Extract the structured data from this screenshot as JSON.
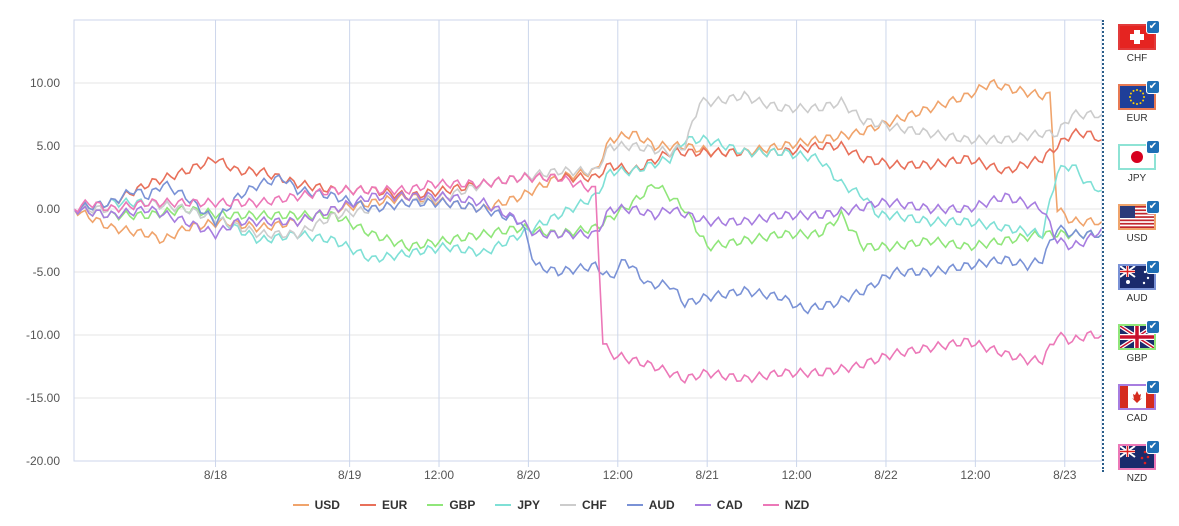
{
  "chart_data": {
    "type": "line",
    "title": "",
    "xlabel": "",
    "ylabel": "",
    "ylim": [
      -20,
      15
    ],
    "xlim": [
      0,
      138
    ],
    "yticks": [
      {
        "value": 10,
        "label": "10.00"
      },
      {
        "value": 5,
        "label": "5.00"
      },
      {
        "value": 0,
        "label": "0.00"
      },
      {
        "value": -5,
        "label": "-5.00"
      },
      {
        "value": -10,
        "label": "-10.00"
      },
      {
        "value": -15,
        "label": "-15.00"
      },
      {
        "value": -20,
        "label": "-20.00"
      }
    ],
    "xticks": [
      {
        "pos": 19,
        "label": "8/18"
      },
      {
        "pos": 37,
        "label": "8/19"
      },
      {
        "pos": 49,
        "label": "12:00"
      },
      {
        "pos": 61,
        "label": "8/20"
      },
      {
        "pos": 73,
        "label": "12:00"
      },
      {
        "pos": 85,
        "label": "8/21"
      },
      {
        "pos": 97,
        "label": "12:00"
      },
      {
        "pos": 109,
        "label": "8/22"
      },
      {
        "pos": 121,
        "label": "12:00"
      },
      {
        "pos": 133,
        "label": "8/23"
      }
    ],
    "grid": "horizontal",
    "legend_position": "bottom",
    "series": [
      {
        "name": "USD",
        "color": "#f0a46c",
        "points": [
          [
            0,
            0
          ],
          [
            5,
            -1.5
          ],
          [
            10,
            -2
          ],
          [
            12,
            -2.5
          ],
          [
            15,
            -1.5
          ],
          [
            20,
            -1
          ],
          [
            25,
            -1.5
          ],
          [
            30,
            -1
          ],
          [
            35,
            0
          ],
          [
            40,
            0.5
          ],
          [
            45,
            1
          ],
          [
            50,
            0.5
          ],
          [
            55,
            0
          ],
          [
            60,
            1
          ],
          [
            65,
            2.5
          ],
          [
            70,
            3
          ],
          [
            72,
            5.5
          ],
          [
            75,
            6
          ],
          [
            78,
            5
          ],
          [
            82,
            5
          ],
          [
            86,
            4.5
          ],
          [
            90,
            4.5
          ],
          [
            95,
            5
          ],
          [
            100,
            5.5
          ],
          [
            105,
            6
          ],
          [
            110,
            7
          ],
          [
            115,
            8
          ],
          [
            120,
            9
          ],
          [
            123,
            10
          ],
          [
            126,
            9.5
          ],
          [
            130,
            9
          ],
          [
            131,
            9
          ],
          [
            132,
            0
          ],
          [
            134,
            -1
          ],
          [
            136,
            -1
          ],
          [
            138,
            -1
          ]
        ]
      },
      {
        "name": "EUR",
        "color": "#e8705a",
        "points": [
          [
            0,
            0
          ],
          [
            5,
            0.5
          ],
          [
            10,
            2
          ],
          [
            15,
            3
          ],
          [
            19,
            4
          ],
          [
            22,
            3
          ],
          [
            25,
            3
          ],
          [
            30,
            2
          ],
          [
            35,
            1.5
          ],
          [
            40,
            1.5
          ],
          [
            45,
            1
          ],
          [
            50,
            1.5
          ],
          [
            55,
            2
          ],
          [
            60,
            2.5
          ],
          [
            65,
            2.5
          ],
          [
            70,
            2.5
          ],
          [
            72,
            3.5
          ],
          [
            75,
            3
          ],
          [
            80,
            4.5
          ],
          [
            85,
            4.5
          ],
          [
            90,
            4.5
          ],
          [
            95,
            4.5
          ],
          [
            100,
            5
          ],
          [
            103,
            5
          ],
          [
            106,
            4
          ],
          [
            110,
            3.5
          ],
          [
            115,
            3.5
          ],
          [
            120,
            4
          ],
          [
            125,
            3
          ],
          [
            130,
            4
          ],
          [
            132,
            5
          ],
          [
            134,
            6
          ],
          [
            136,
            6
          ],
          [
            138,
            5.5
          ]
        ]
      },
      {
        "name": "GBP",
        "color": "#90e67a",
        "points": [
          [
            0,
            0
          ],
          [
            5,
            -0.5
          ],
          [
            10,
            -0.5
          ],
          [
            15,
            0
          ],
          [
            20,
            -0.5
          ],
          [
            25,
            -0.5
          ],
          [
            30,
            -0.5
          ],
          [
            35,
            -0.5
          ],
          [
            40,
            -2
          ],
          [
            45,
            -3
          ],
          [
            50,
            -2.5
          ],
          [
            55,
            -2
          ],
          [
            60,
            -1.5
          ],
          [
            65,
            -2
          ],
          [
            70,
            -1.5
          ],
          [
            75,
            0.5
          ],
          [
            78,
            2
          ],
          [
            82,
            0
          ],
          [
            85,
            -3
          ],
          [
            90,
            -2.5
          ],
          [
            95,
            -2
          ],
          [
            100,
            -2
          ],
          [
            103,
            -0.5
          ],
          [
            106,
            -3
          ],
          [
            110,
            -3
          ],
          [
            115,
            -2.5
          ],
          [
            120,
            -3
          ],
          [
            125,
            -2.5
          ],
          [
            130,
            -2
          ],
          [
            134,
            -2
          ],
          [
            138,
            -2
          ]
        ]
      },
      {
        "name": "JPY",
        "color": "#7fe0d6",
        "points": [
          [
            0,
            0
          ],
          [
            5,
            0.5
          ],
          [
            10,
            0.5
          ],
          [
            15,
            0
          ],
          [
            20,
            -1
          ],
          [
            25,
            -2.5
          ],
          [
            30,
            -2
          ],
          [
            35,
            -2.5
          ],
          [
            40,
            -4
          ],
          [
            45,
            -3.5
          ],
          [
            50,
            -3
          ],
          [
            55,
            -3.5
          ],
          [
            60,
            -2
          ],
          [
            65,
            -0.5
          ],
          [
            70,
            1
          ],
          [
            72,
            3
          ],
          [
            75,
            3
          ],
          [
            80,
            4
          ],
          [
            82,
            5.5
          ],
          [
            85,
            5.5
          ],
          [
            90,
            4.5
          ],
          [
            95,
            4.5
          ],
          [
            100,
            4
          ],
          [
            103,
            2
          ],
          [
            106,
            1
          ],
          [
            108,
            -0.5
          ],
          [
            110,
            -0.5
          ],
          [
            115,
            -1
          ],
          [
            120,
            -1
          ],
          [
            125,
            -1.5
          ],
          [
            130,
            -2
          ],
          [
            132,
            3
          ],
          [
            134,
            3.5
          ],
          [
            136,
            2
          ],
          [
            138,
            1.5
          ]
        ]
      },
      {
        "name": "CHF",
        "color": "#cccccc",
        "points": [
          [
            0,
            0
          ],
          [
            5,
            0
          ],
          [
            10,
            0.5
          ],
          [
            15,
            0
          ],
          [
            20,
            -1
          ],
          [
            25,
            -2
          ],
          [
            30,
            -2
          ],
          [
            35,
            -0.5
          ],
          [
            40,
            0
          ],
          [
            45,
            0.5
          ],
          [
            50,
            1
          ],
          [
            55,
            2
          ],
          [
            60,
            2.5
          ],
          [
            65,
            3
          ],
          [
            70,
            3
          ],
          [
            72,
            5
          ],
          [
            75,
            5
          ],
          [
            80,
            4.5
          ],
          [
            82,
            5
          ],
          [
            84,
            8.5
          ],
          [
            86,
            8.5
          ],
          [
            90,
            9
          ],
          [
            92,
            8.5
          ],
          [
            95,
            8
          ],
          [
            100,
            8
          ],
          [
            103,
            8.5
          ],
          [
            106,
            7
          ],
          [
            110,
            6.5
          ],
          [
            115,
            6
          ],
          [
            120,
            5.5
          ],
          [
            125,
            5.5
          ],
          [
            130,
            6
          ],
          [
            132,
            6
          ],
          [
            134,
            7.5
          ],
          [
            136,
            7.5
          ],
          [
            138,
            7.5
          ]
        ]
      },
      {
        "name": "AUD",
        "color": "#7a92d6",
        "points": [
          [
            0,
            0
          ],
          [
            5,
            0.5
          ],
          [
            8,
            1.5
          ],
          [
            10,
            1
          ],
          [
            12,
            2
          ],
          [
            15,
            1
          ],
          [
            19,
            -1
          ],
          [
            22,
            1
          ],
          [
            25,
            2
          ],
          [
            28,
            2.5
          ],
          [
            30,
            1.5
          ],
          [
            35,
            1
          ],
          [
            40,
            0
          ],
          [
            45,
            0.5
          ],
          [
            50,
            0.5
          ],
          [
            55,
            0
          ],
          [
            60,
            -1
          ],
          [
            62,
            -4.5
          ],
          [
            65,
            -5
          ],
          [
            70,
            -4.5
          ],
          [
            72,
            -5.5
          ],
          [
            74,
            -4
          ],
          [
            77,
            -6
          ],
          [
            80,
            -6
          ],
          [
            82,
            -7.5
          ],
          [
            85,
            -7
          ],
          [
            90,
            -6.5
          ],
          [
            95,
            -7
          ],
          [
            98,
            -8
          ],
          [
            102,
            -7.5
          ],
          [
            106,
            -6.5
          ],
          [
            110,
            -5
          ],
          [
            115,
            -5
          ],
          [
            120,
            -4.5
          ],
          [
            125,
            -4
          ],
          [
            128,
            -4.5
          ],
          [
            130,
            -4
          ],
          [
            132,
            -1.5
          ],
          [
            134,
            -2
          ],
          [
            136,
            -2
          ],
          [
            138,
            -2
          ]
        ]
      },
      {
        "name": "CAD",
        "color": "#a77de0",
        "points": [
          [
            0,
            0
          ],
          [
            5,
            -0.5
          ],
          [
            10,
            0
          ],
          [
            15,
            -1
          ],
          [
            19,
            -2
          ],
          [
            22,
            -1
          ],
          [
            25,
            -1
          ],
          [
            30,
            -1
          ],
          [
            35,
            0
          ],
          [
            40,
            1
          ],
          [
            45,
            1
          ],
          [
            50,
            1
          ],
          [
            55,
            0.5
          ],
          [
            60,
            -1
          ],
          [
            62,
            -2
          ],
          [
            65,
            -2
          ],
          [
            70,
            -2
          ],
          [
            72,
            0
          ],
          [
            75,
            0
          ],
          [
            78,
            -0.5
          ],
          [
            80,
            0
          ],
          [
            85,
            -1
          ],
          [
            90,
            -1
          ],
          [
            95,
            -0.5
          ],
          [
            100,
            -0.5
          ],
          [
            105,
            0
          ],
          [
            108,
            0.5
          ],
          [
            110,
            0.5
          ],
          [
            115,
            0
          ],
          [
            120,
            0
          ],
          [
            125,
            1
          ],
          [
            130,
            0
          ],
          [
            132,
            -2.5
          ],
          [
            134,
            -3
          ],
          [
            136,
            -2.5
          ],
          [
            138,
            -1.5
          ]
        ]
      },
      {
        "name": "NZD",
        "color": "#ec78b8",
        "points": [
          [
            0,
            0
          ],
          [
            2,
            0.5
          ],
          [
            5,
            0
          ],
          [
            10,
            0.5
          ],
          [
            15,
            0.5
          ],
          [
            20,
            0.5
          ],
          [
            25,
            0.5
          ],
          [
            30,
            1
          ],
          [
            35,
            1.5
          ],
          [
            40,
            1.5
          ],
          [
            45,
            1.5
          ],
          [
            48,
            2
          ],
          [
            50,
            2
          ],
          [
            55,
            2
          ],
          [
            60,
            2.5
          ],
          [
            65,
            2.5
          ],
          [
            70,
            1.5
          ],
          [
            71,
            -10.5
          ],
          [
            72,
            -11.5
          ],
          [
            75,
            -12
          ],
          [
            78,
            -12.5
          ],
          [
            82,
            -13.5
          ],
          [
            85,
            -13
          ],
          [
            90,
            -13.5
          ],
          [
            95,
            -13
          ],
          [
            100,
            -13
          ],
          [
            105,
            -12.5
          ],
          [
            110,
            -11.5
          ],
          [
            115,
            -11
          ],
          [
            120,
            -10.5
          ],
          [
            125,
            -11.5
          ],
          [
            128,
            -12
          ],
          [
            130,
            -12
          ],
          [
            132,
            -10
          ],
          [
            134,
            -10.5
          ],
          [
            136,
            -10
          ],
          [
            138,
            -10
          ]
        ]
      }
    ]
  },
  "sidebar": {
    "currencies": [
      {
        "code": "CHF",
        "border": "#e23b3b"
      },
      {
        "code": "EUR",
        "border": "#e87a54"
      },
      {
        "code": "JPY",
        "border": "#8ee3d5"
      },
      {
        "code": "USD",
        "border": "#f0a46c"
      },
      {
        "code": "AUD",
        "border": "#7a92d6"
      },
      {
        "code": "GBP",
        "border": "#90e67a"
      },
      {
        "code": "CAD",
        "border": "#a77de0"
      },
      {
        "code": "NZD",
        "border": "#ec78b8"
      }
    ]
  }
}
